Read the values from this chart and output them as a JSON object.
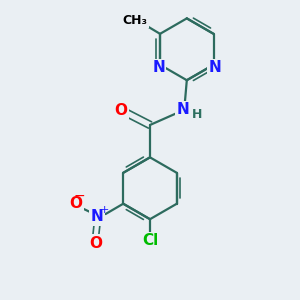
{
  "background_color": "#eaeff3",
  "bond_color": "#2d6b5e",
  "n_color": "#1a1aff",
  "o_color": "#ff0000",
  "cl_color": "#00bb00",
  "c_color": "#000000",
  "h_color": "#2d7060",
  "figsize": [
    3.0,
    3.0
  ],
  "dpi": 100,
  "xlim": [
    0,
    10
  ],
  "ylim": [
    0,
    10
  ]
}
